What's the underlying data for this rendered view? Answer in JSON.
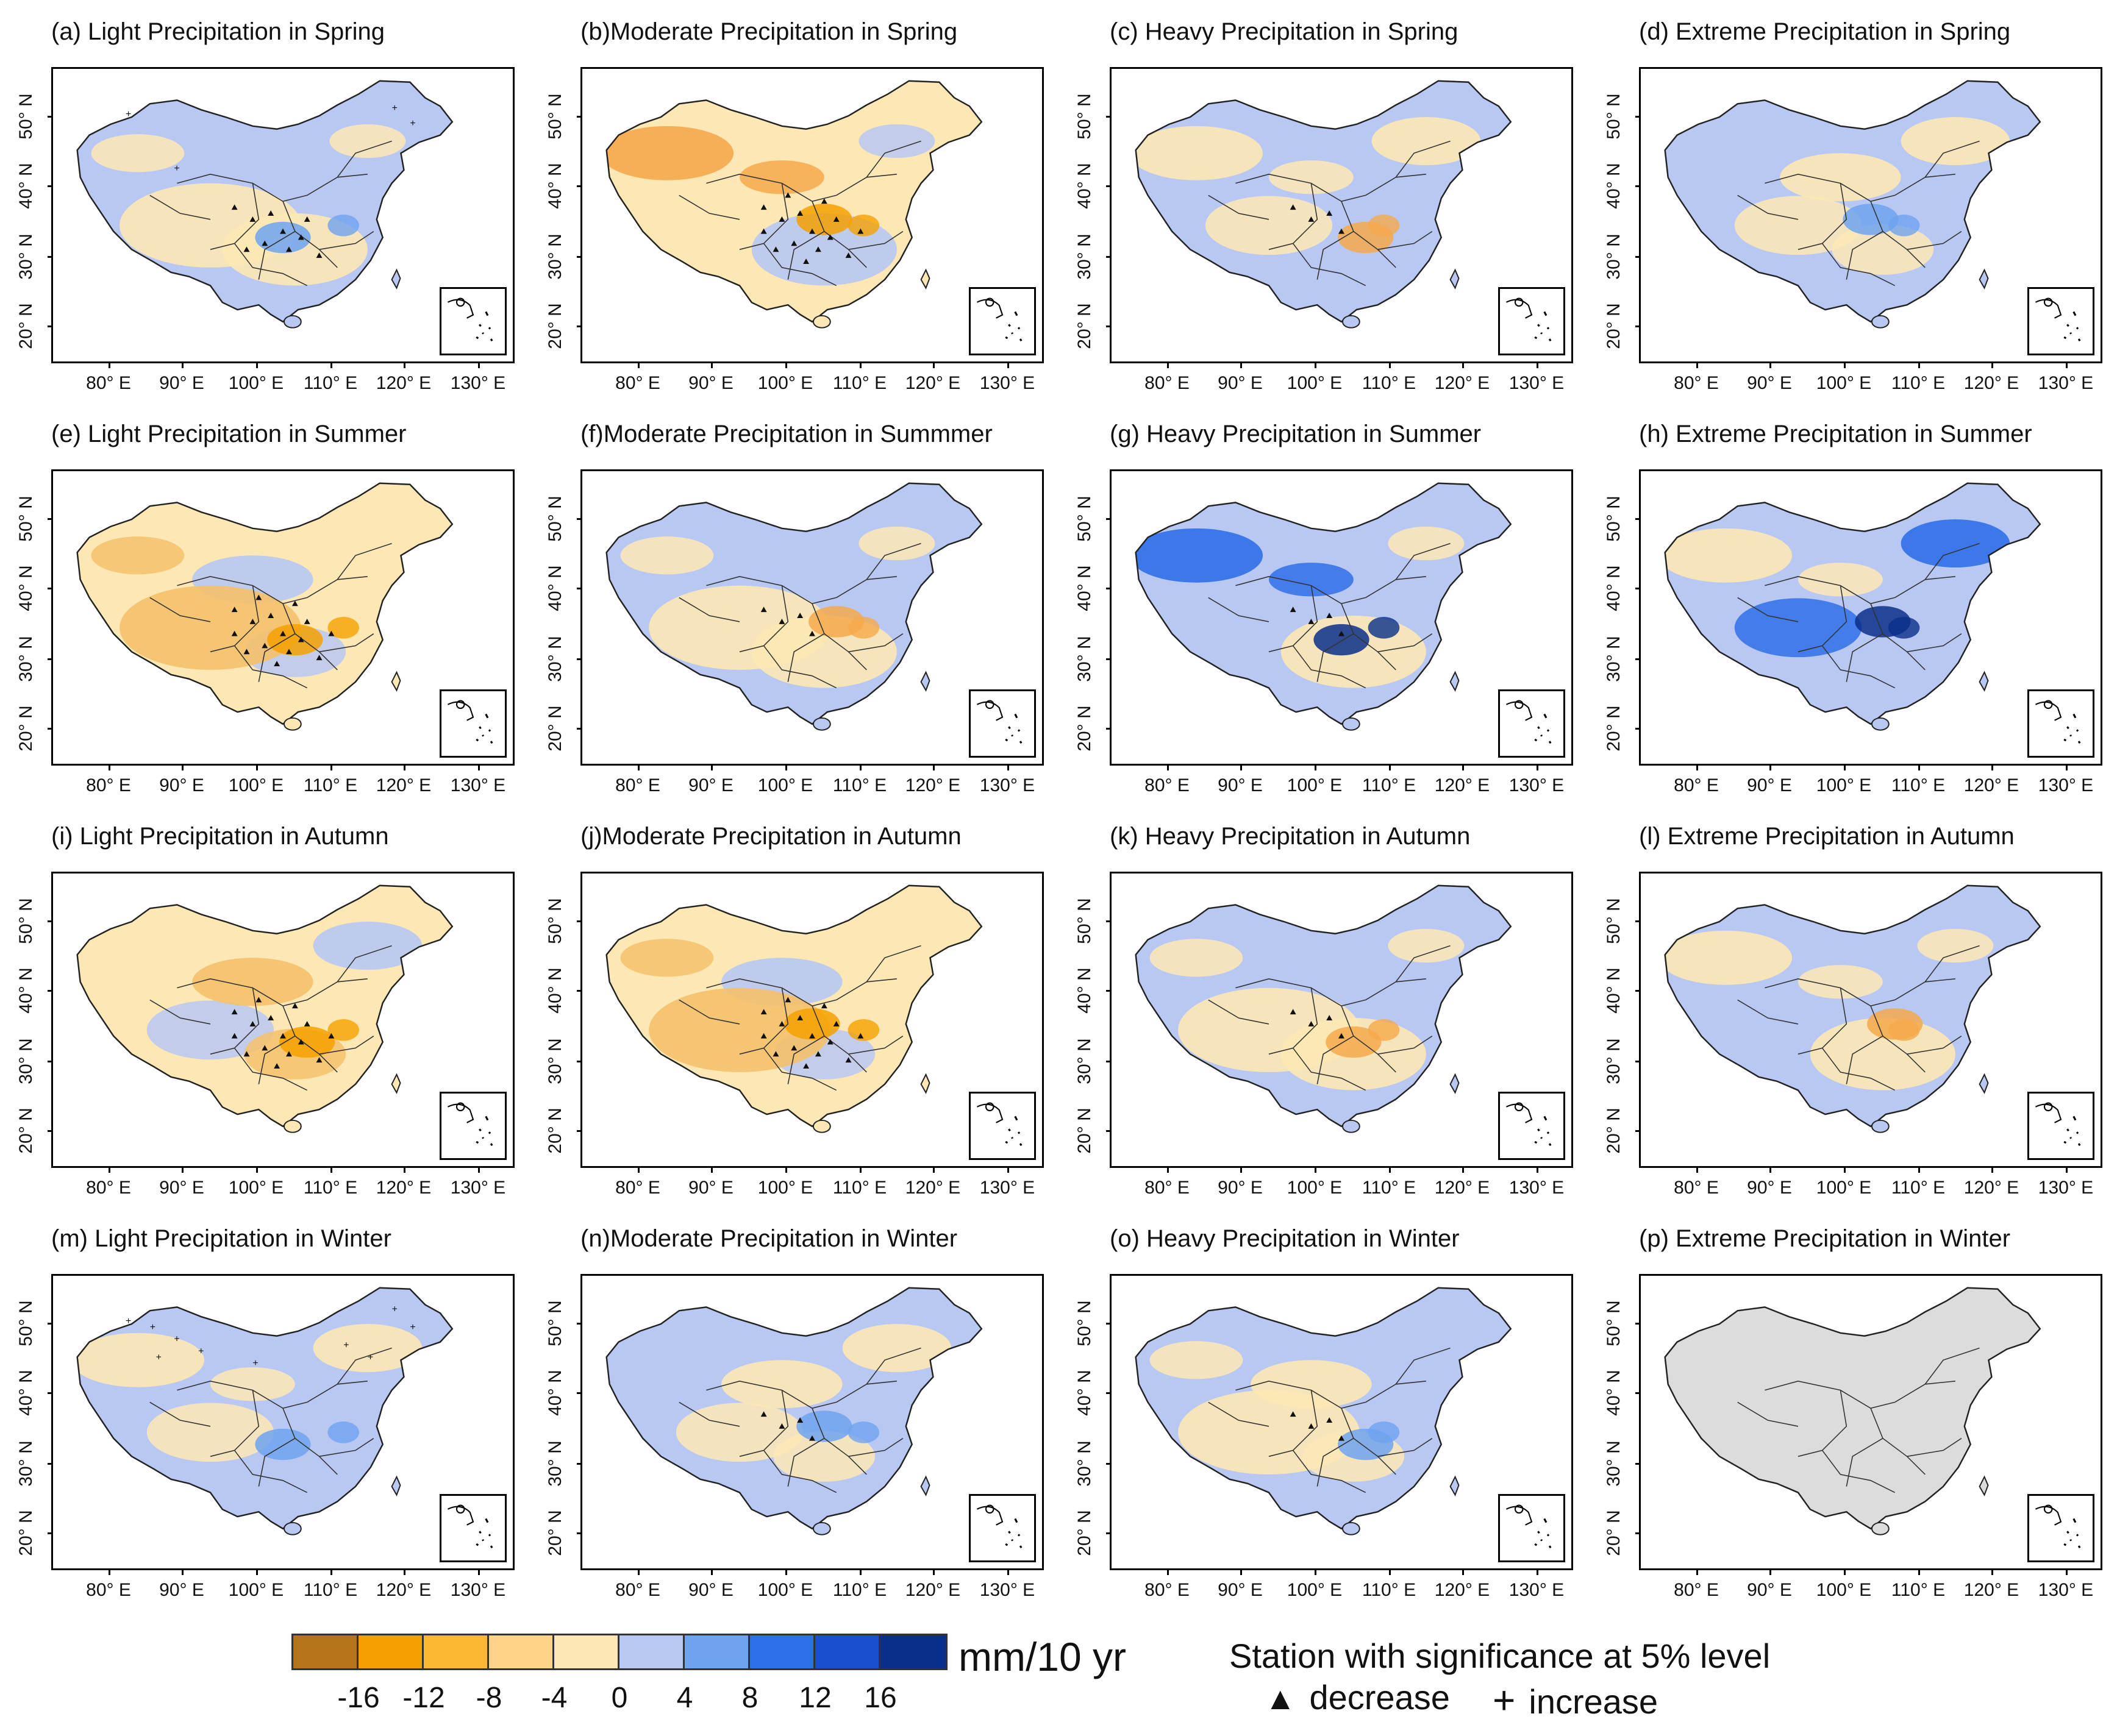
{
  "figure": {
    "y_axis_labels": [
      "50° N",
      "40° N",
      "30° N",
      "20° N"
    ],
    "x_axis_labels": [
      "80° E",
      "90° E",
      "100° E",
      "110° E",
      "120° E",
      "130° E"
    ]
  },
  "panels": [
    {
      "title": "(a) Light Precipitation in Spring",
      "palette": "blue-dominant",
      "markers": "mixed"
    },
    {
      "title": "(b)Moderate Precipitation in Spring",
      "palette": "orange-center",
      "markers": "decrease"
    },
    {
      "title": "(c) Heavy Precipitation in Spring",
      "palette": "mixed",
      "markers": "few"
    },
    {
      "title": "(d) Extreme Precipitation in Spring",
      "palette": "blue-dominant",
      "markers": "none"
    },
    {
      "title": "(e) Light Precipitation in Summer",
      "palette": "yellow-dominant",
      "markers": "decrease"
    },
    {
      "title": "(f)Moderate Precipitation in Summmer",
      "palette": "mixed",
      "markers": "few"
    },
    {
      "title": "(g) Heavy Precipitation in Summer",
      "palette": "blue-strong",
      "markers": "few"
    },
    {
      "title": "(h) Extreme Precipitation in Summer",
      "palette": "blue-strong",
      "markers": "none"
    },
    {
      "title": "(i) Light Precipitation in Autumn",
      "palette": "yellow-dominant",
      "markers": "decrease"
    },
    {
      "title": "(j)Moderate Precipitation in Autumn",
      "palette": "yellow-dominant",
      "markers": "decrease"
    },
    {
      "title": "(k) Heavy Precipitation in Autumn",
      "palette": "mixed",
      "markers": "few"
    },
    {
      "title": "(l) Extreme Precipitation in Autumn",
      "palette": "mixed",
      "markers": "none"
    },
    {
      "title": "(m) Light Precipitation in Winter",
      "palette": "blue-dominant",
      "markers": "increase"
    },
    {
      "title": "(n)Moderate Precipitation in Winter",
      "palette": "blue-dominant",
      "markers": "few"
    },
    {
      "title": "(o) Heavy Precipitation in Winter",
      "palette": "blue-dominant",
      "markers": "few"
    },
    {
      "title": "(p) Extreme Precipitation in Winter",
      "palette": "gray",
      "markers": "none"
    }
  ],
  "colorbar": {
    "ticks": [
      "-16",
      "-12",
      "-8",
      "-4",
      "0",
      "4",
      "8",
      "12",
      "16"
    ],
    "unit": "mm/10 yr",
    "colors": [
      "#b5741a",
      "#f5a000",
      "#fdb833",
      "#fdd387",
      "#fde8b5",
      "#b8c8f2",
      "#6fa3f0",
      "#2f6fe8",
      "#1a4fd0",
      "#0a2f8a"
    ]
  },
  "significance": {
    "title": "Station with significance at 5% level",
    "decrease_symbol": "▲",
    "decrease_label": "decrease",
    "increase_symbol": "+",
    "increase_label": "increase"
  },
  "palette": {
    "light_blue": "#b8c8f2",
    "light_yellow": "#fde8b5",
    "orange": "#f5a94b",
    "dark_blue": "#2f6fe8",
    "gray": "#dcdcdc"
  }
}
